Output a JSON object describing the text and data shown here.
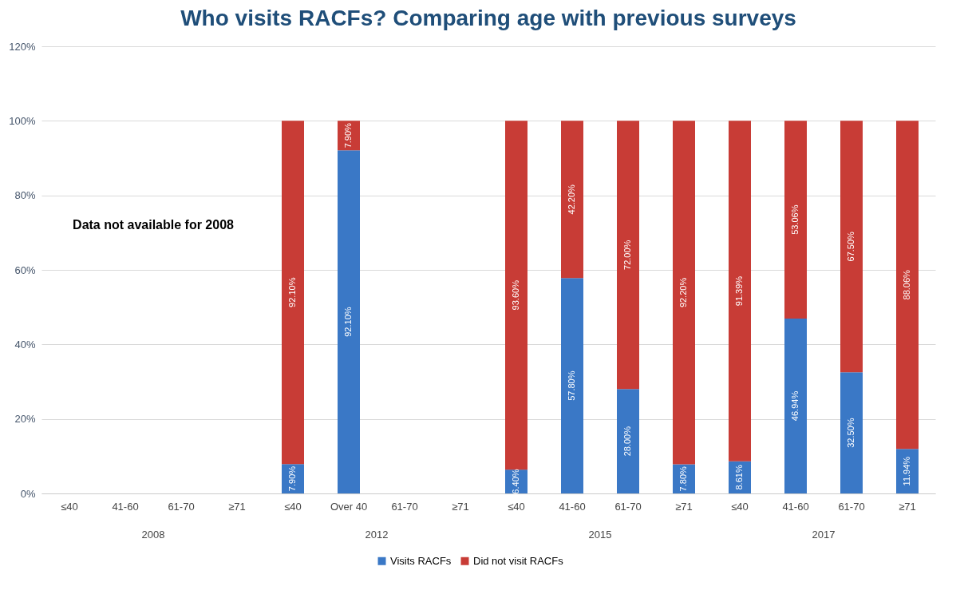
{
  "chart_data": {
    "type": "bar",
    "title": "Who visits RACFs? Comparing age with previous surveys",
    "categories": [
      "≤40",
      "41-60",
      "61-70",
      "≥71",
      "≤40",
      "Over 40",
      "61-70",
      "≥71",
      "≤40",
      "41-60",
      "61-70",
      "≥71",
      "≤40",
      "41-60",
      "61-70",
      "≥71"
    ],
    "stacked": true,
    "series": [
      {
        "name": "Visits RACFs",
        "color": "#3a78c6",
        "values": [
          null,
          null,
          null,
          null,
          7.9,
          92.1,
          null,
          null,
          6.4,
          57.8,
          28.0,
          7.8,
          8.61,
          46.94,
          32.5,
          11.94
        ],
        "value_labels": [
          null,
          null,
          null,
          null,
          "7.90%",
          "92.10%",
          null,
          null,
          "6.40%",
          "57.80%",
          "28.00%",
          "7.80%",
          "8.61%",
          "46.94%",
          "32.50%",
          "11.94%"
        ]
      },
      {
        "name": "Did not visit RACFs",
        "color": "#c83c36",
        "values": [
          null,
          null,
          null,
          null,
          92.1,
          7.9,
          null,
          null,
          93.6,
          42.2,
          72.0,
          92.2,
          91.39,
          53.06,
          67.5,
          88.06
        ],
        "value_labels": [
          null,
          null,
          null,
          null,
          "92.10%",
          "7.90%",
          null,
          null,
          "93.60%",
          "42.20%",
          "72.00%",
          "92.20%",
          "91.39%",
          "53.06%",
          "67.50%",
          "88.06%"
        ]
      }
    ],
    "ylim": [
      0,
      120
    ],
    "yticks": [
      {
        "value": 0,
        "label": "0%"
      },
      {
        "value": 20,
        "label": "20%"
      },
      {
        "value": 40,
        "label": "40%"
      },
      {
        "value": 60,
        "label": "60%"
      },
      {
        "value": 80,
        "label": "80%"
      },
      {
        "value": 100,
        "label": "100%"
      },
      {
        "value": 120,
        "label": "120%"
      }
    ],
    "grid": "y",
    "legend": "bottom",
    "annotations": [
      "Data not available for 2008",
      "2008",
      "2012",
      "2015",
      "2017"
    ]
  }
}
